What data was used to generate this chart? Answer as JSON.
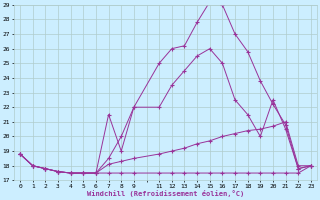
{
  "xlabel": "Windchill (Refroidissement éolien,°C)",
  "background_color": "#cceeff",
  "grid_color": "#b0cccc",
  "line_color": "#993399",
  "xmin": 0,
  "xmax": 23,
  "ymin": 17,
  "ymax": 29,
  "yticks": [
    17,
    18,
    19,
    20,
    21,
    22,
    23,
    24,
    25,
    26,
    27,
    28,
    29
  ],
  "xtick_labels": [
    "0",
    "1",
    "2",
    "3",
    "4",
    "5",
    "6",
    "7",
    "8",
    "9",
    "",
    "11",
    "12",
    "13",
    "14",
    "15",
    "16",
    "17",
    "18",
    "19",
    "20",
    "21",
    "22",
    "23"
  ],
  "line1_x": [
    0,
    1,
    2,
    3,
    4,
    5,
    6,
    7,
    8,
    9,
    11,
    12,
    13,
    14,
    15,
    16,
    17,
    18,
    19,
    20,
    21,
    22,
    23
  ],
  "line1_y": [
    18.8,
    18.0,
    17.8,
    17.6,
    17.5,
    17.5,
    17.5,
    17.5,
    17.5,
    17.5,
    17.5,
    17.5,
    17.5,
    17.5,
    17.5,
    17.5,
    17.5,
    17.5,
    17.5,
    17.5,
    17.5,
    17.5,
    18.0
  ],
  "line2_x": [
    0,
    1,
    2,
    3,
    4,
    5,
    6,
    7,
    8,
    9,
    11,
    12,
    13,
    14,
    15,
    16,
    17,
    18,
    19,
    20,
    21,
    22,
    23
  ],
  "line2_y": [
    18.8,
    18.0,
    17.8,
    17.6,
    17.5,
    17.5,
    17.5,
    18.1,
    18.3,
    18.5,
    18.8,
    19.0,
    19.2,
    19.5,
    19.7,
    20.0,
    20.2,
    20.4,
    20.5,
    20.7,
    21.0,
    18.0,
    18.0
  ],
  "line3_x": [
    0,
    1,
    2,
    3,
    4,
    5,
    6,
    7,
    8,
    9,
    11,
    12,
    13,
    14,
    15,
    16,
    17,
    18,
    19,
    20,
    21,
    22,
    23
  ],
  "line3_y": [
    18.8,
    18.0,
    17.8,
    17.6,
    17.5,
    17.5,
    17.5,
    21.5,
    19.0,
    22.0,
    25.0,
    26.0,
    26.2,
    27.8,
    29.2,
    29.0,
    27.0,
    25.8,
    23.8,
    22.2,
    20.8,
    17.8,
    18.0
  ],
  "line4_x": [
    0,
    1,
    2,
    3,
    4,
    5,
    6,
    7,
    8,
    9,
    11,
    12,
    13,
    14,
    15,
    16,
    17,
    18,
    19,
    20,
    21,
    22,
    23
  ],
  "line4_y": [
    18.8,
    18.0,
    17.8,
    17.6,
    17.5,
    17.5,
    17.5,
    18.5,
    20.0,
    22.0,
    22.0,
    23.5,
    24.5,
    25.5,
    26.0,
    25.0,
    22.5,
    21.5,
    20.0,
    22.5,
    20.5,
    17.8,
    18.0
  ]
}
